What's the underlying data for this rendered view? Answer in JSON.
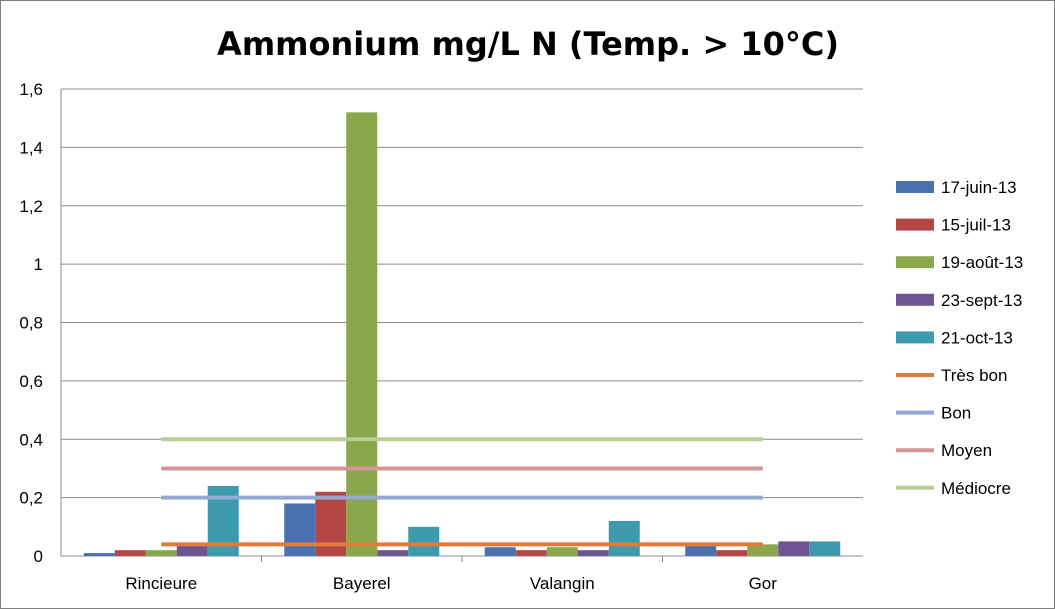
{
  "chart_data": {
    "type": "bar",
    "title": "Ammonium mg/L N (Temp. > 10°C)",
    "categories": [
      "Rincieure",
      "Bayerel",
      "Valangin",
      "Gor"
    ],
    "y_tick_labels": [
      "0",
      "0,2",
      "0,4",
      "0,6",
      "0,8",
      "1",
      "1,2",
      "1,4",
      "1,6"
    ],
    "ylim": [
      0,
      1.6
    ],
    "grid": true,
    "legend_position": "right",
    "series": [
      {
        "name": "17-juin-13",
        "color": "#4a72b0",
        "values": [
          0.01,
          0.18,
          0.03,
          0.035
        ]
      },
      {
        "name": "15-juil-13",
        "color": "#b34745",
        "values": [
          0.02,
          0.22,
          0.02,
          0.02
        ]
      },
      {
        "name": "19-août-13",
        "color": "#8aa84b",
        "values": [
          0.02,
          1.52,
          0.03,
          0.04
        ]
      },
      {
        "name": "23-sept-13",
        "color": "#6d5493",
        "values": [
          0.035,
          0.02,
          0.02,
          0.05
        ]
      },
      {
        "name": "21-oct-13",
        "color": "#3e9aae",
        "values": [
          0.24,
          0.1,
          0.12,
          0.05
        ]
      }
    ],
    "reference_lines": [
      {
        "name": "Très bon",
        "color": "#e07b39",
        "value": 0.04
      },
      {
        "name": "Bon",
        "color": "#93a9d4",
        "value": 0.2
      },
      {
        "name": "Moyen",
        "color": "#d4959a",
        "value": 0.3
      },
      {
        "name": "Médiocre",
        "color": "#b7cf93",
        "value": 0.4
      }
    ]
  }
}
